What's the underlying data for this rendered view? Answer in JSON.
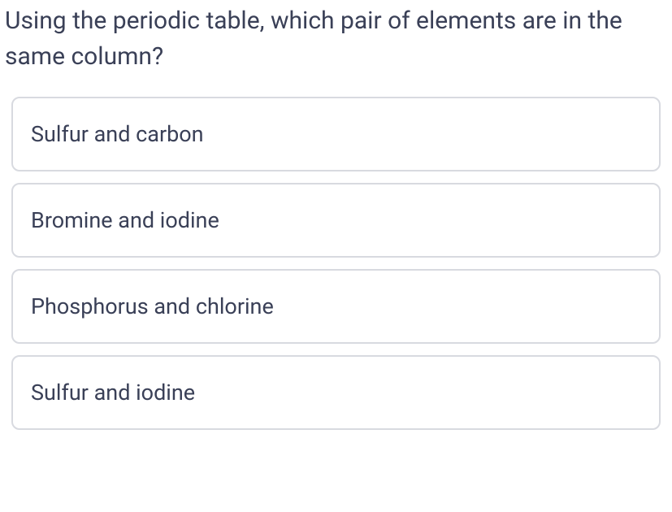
{
  "question": {
    "text": "Using the periodic table, which pair of elements are in the same column?",
    "text_color": "#3a4057",
    "font_size": 30
  },
  "options": [
    {
      "label": "Sulfur and carbon"
    },
    {
      "label": "Bromine and iodine"
    },
    {
      "label": "Phosphorus and chlorine"
    },
    {
      "label": "Sulfur and iodine"
    }
  ],
  "styling": {
    "option_border_color": "#d8dae0",
    "option_border_radius": 10,
    "option_text_color": "#3a4057",
    "option_font_size": 27,
    "background_color": "#ffffff"
  }
}
